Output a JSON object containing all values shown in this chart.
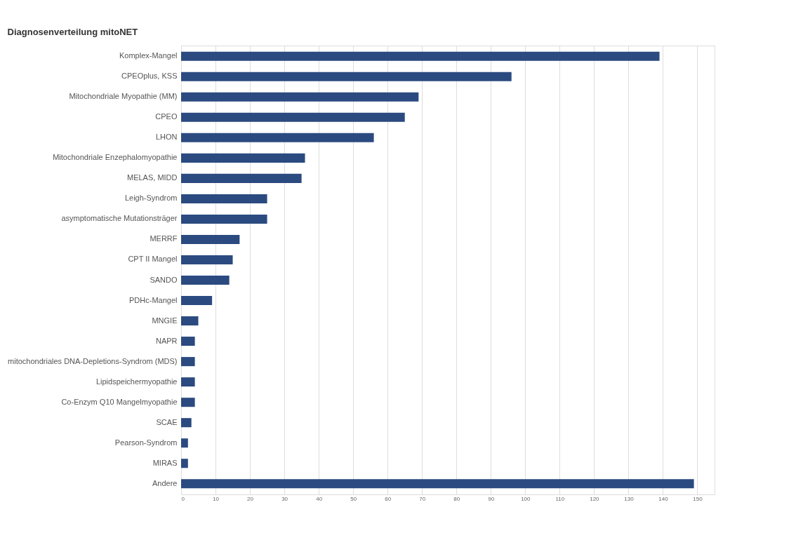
{
  "chart_data": {
    "type": "bar",
    "orientation": "horizontal",
    "title": "Diagnosenverteilung  mitoNET",
    "categories": [
      "Komplex-Mangel",
      "CPEOplus, KSS",
      "Mitochondriale Myopathie (MM)",
      "CPEO",
      "LHON",
      "Mitochondriale Enzephalomyopathie",
      "MELAS, MIDD",
      "Leigh-Syndrom",
      "asymptomatische Mutationsträger",
      "MERRF",
      "CPT II Mangel",
      "SANDO",
      "PDHc-Mangel",
      "MNGIE",
      "NAPR",
      "mitochondriales DNA-Depletions-Syndrom (MDS)",
      "Lipidspeichermyopathie",
      "Co-Enzym Q10 Mangelmyopathie",
      "SCAE",
      "Pearson-Syndrom",
      "MIRAS",
      "Andere"
    ],
    "values": [
      139,
      96,
      69,
      65,
      56,
      36,
      35,
      25,
      25,
      17,
      15,
      14,
      9,
      5,
      4,
      4,
      4,
      4,
      3,
      2,
      2,
      149
    ],
    "color": "#2b4a80",
    "xlim": [
      0,
      155
    ],
    "xticks": [
      0,
      10,
      20,
      30,
      40,
      50,
      60,
      70,
      80,
      90,
      100,
      110,
      120,
      130,
      140,
      150
    ],
    "grid": "x"
  }
}
